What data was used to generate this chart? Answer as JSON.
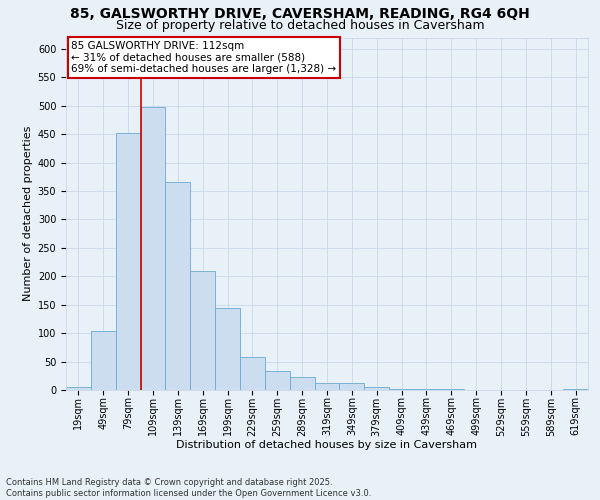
{
  "title_line1": "85, GALSWORTHY DRIVE, CAVERSHAM, READING, RG4 6QH",
  "title_line2": "Size of property relative to detached houses in Caversham",
  "xlabel": "Distribution of detached houses by size in Caversham",
  "ylabel": "Number of detached properties",
  "bar_color": "#ccddf0",
  "bar_edge_color": "#6aaad4",
  "bin_labels": [
    "19sqm",
    "49sqm",
    "79sqm",
    "109sqm",
    "139sqm",
    "169sqm",
    "199sqm",
    "229sqm",
    "259sqm",
    "289sqm",
    "319sqm",
    "349sqm",
    "379sqm",
    "409sqm",
    "439sqm",
    "469sqm",
    "499sqm",
    "529sqm",
    "559sqm",
    "589sqm",
    "619sqm"
  ],
  "bar_values": [
    6,
    103,
    452,
    497,
    365,
    210,
    145,
    58,
    34,
    22,
    12,
    12,
    6,
    2,
    1,
    1,
    0,
    0,
    0,
    0,
    2
  ],
  "ylim": [
    0,
    620
  ],
  "yticks": [
    0,
    50,
    100,
    150,
    200,
    250,
    300,
    350,
    400,
    450,
    500,
    550,
    600
  ],
  "vline_color": "#cc0000",
  "vline_x_index": 3,
  "annotation_title": "85 GALSWORTHY DRIVE: 112sqm",
  "annotation_line2": "← 31% of detached houses are smaller (588)",
  "annotation_line3": "69% of semi-detached houses are larger (1,328) →",
  "annotation_box_color": "#ffffff",
  "annotation_box_edge": "#cc0000",
  "grid_color": "#c8d8ec",
  "bg_color": "#e8f0f8",
  "footnote": "Contains HM Land Registry data © Crown copyright and database right 2025.\nContains public sector information licensed under the Open Government Licence v3.0.",
  "title_fontsize": 10,
  "subtitle_fontsize": 9,
  "axis_label_fontsize": 8,
  "tick_fontsize": 7,
  "annot_fontsize": 7.5,
  "footnote_fontsize": 6
}
